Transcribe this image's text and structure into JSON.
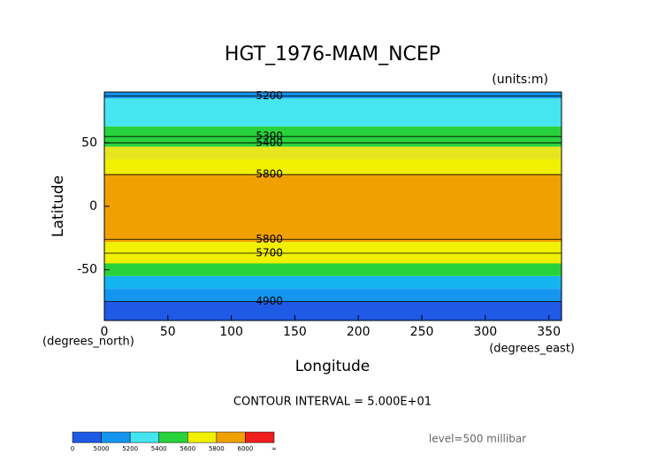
{
  "chart_data": {
    "type": "contour",
    "title": "HGT_1976-MAM_NCEP",
    "subtitle": "(units:m)",
    "x_label": "Longitude",
    "y_label": "Latitude",
    "x_units": "(degrees_east)",
    "y_units": "(degrees_north)",
    "footnote": "CONTOUR INTERVAL = 5.000E+01",
    "level_note": "level=500 millibar",
    "xlim": [
      0,
      360
    ],
    "ylim": [
      -90,
      90
    ],
    "xticks": [
      0,
      50,
      100,
      150,
      200,
      250,
      300,
      350
    ],
    "yticks": [
      -50,
      0,
      50
    ],
    "bands": [
      {
        "lat": [
          -90,
          -75
        ],
        "color": "#1e5ae6"
      },
      {
        "lat": [
          -75,
          -65
        ],
        "color": "#1496f0"
      },
      {
        "lat": [
          -65,
          -55
        ],
        "color": "#14b4f0"
      },
      {
        "lat": [
          -55,
          -45
        ],
        "color": "#28d23c"
      },
      {
        "lat": [
          -45,
          -28
        ],
        "color": "#f0f000"
      },
      {
        "lat": [
          -28,
          25
        ],
        "color": "#f0a000"
      },
      {
        "lat": [
          25,
          37
        ],
        "color": "#f0f000"
      },
      {
        "lat": [
          37,
          47
        ],
        "color": "#e6e61e"
      },
      {
        "lat": [
          47,
          63
        ],
        "color": "#28d23c"
      },
      {
        "lat": [
          63,
          85
        ],
        "color": "#46e6f0"
      },
      {
        "lat": [
          85,
          90
        ],
        "color": "#1496f0"
      }
    ],
    "contours": [
      {
        "level": 5200,
        "lat": 87
      },
      {
        "level": 5300,
        "lat": 55
      },
      {
        "level": 5400,
        "lat": 50
      },
      {
        "level": 5800,
        "lat": 25
      },
      {
        "level": 5800,
        "lat": -26
      },
      {
        "level": 5700,
        "lat": -37
      },
      {
        "level": 4900,
        "lat": -75
      }
    ],
    "colorbar": {
      "labels": [
        "0",
        "5000",
        "5200",
        "5400",
        "5600",
        "5800",
        "6000",
        "∞"
      ],
      "colors": [
        "#1e5ae6",
        "#1496f0",
        "#46e6f0",
        "#28d23c",
        "#f0f000",
        "#f0a000",
        "#f01e1e"
      ]
    }
  }
}
